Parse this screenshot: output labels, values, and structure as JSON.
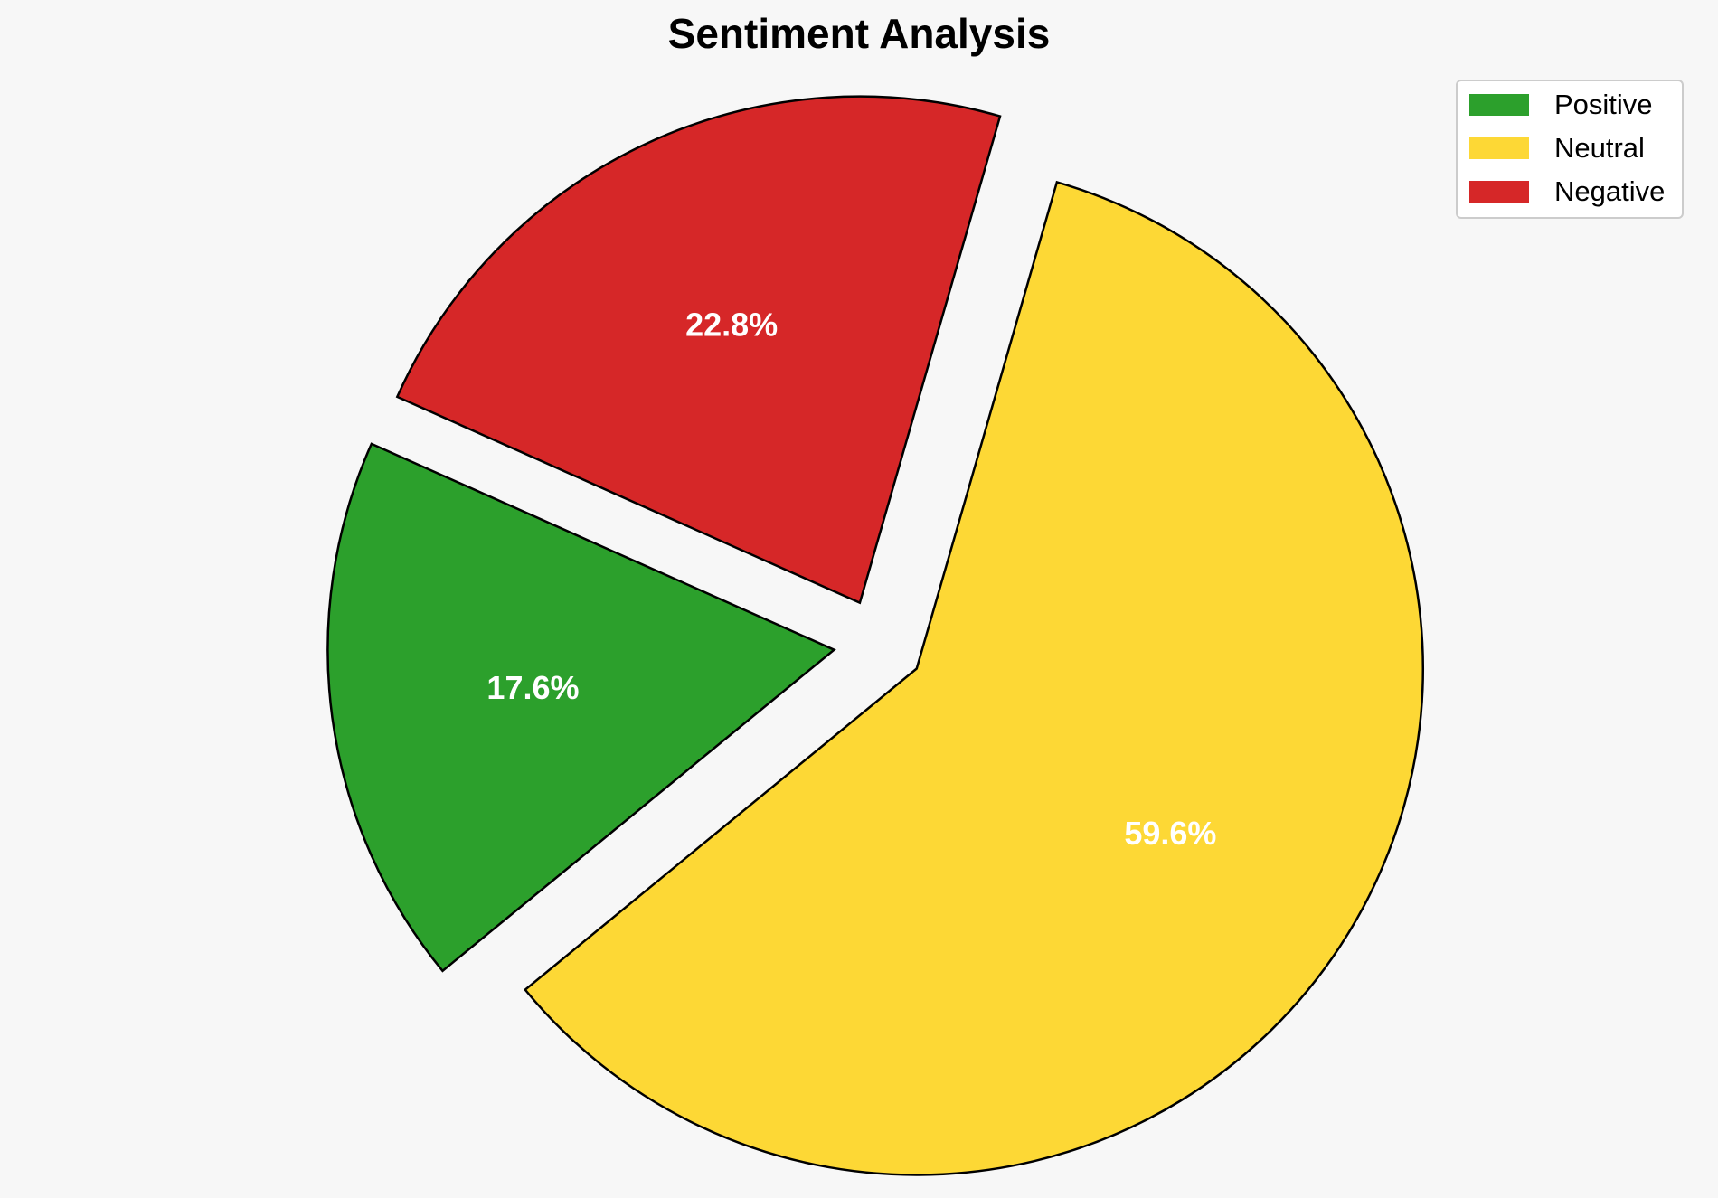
{
  "chart_data": {
    "type": "pie",
    "title": "Sentiment Analysis",
    "categories": [
      "Positive",
      "Neutral",
      "Negative"
    ],
    "values": [
      17.6,
      59.6,
      22.8
    ],
    "value_labels": [
      "17.6%",
      "59.6%",
      "22.8%"
    ],
    "colors": [
      "#2ca02c",
      "#fdd835",
      "#d62728"
    ],
    "legend_placement": "top-right",
    "exploded": true,
    "edgecolor": "#000000"
  }
}
